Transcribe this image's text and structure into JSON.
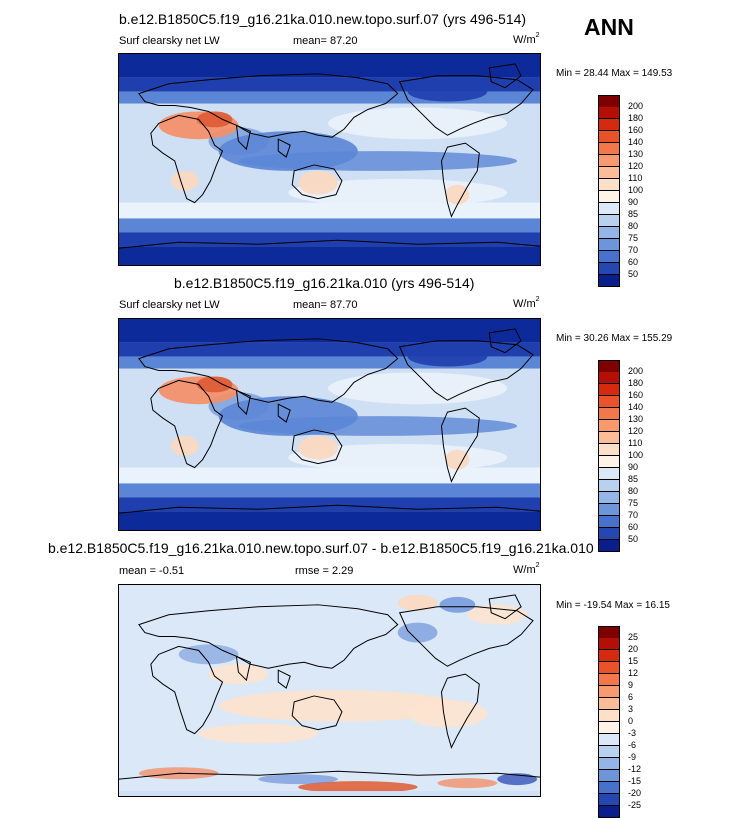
{
  "season": "ANN",
  "panels": [
    {
      "title": "b.e12.B1850C5.f19_g16.21ka.010.new.topo.surf.07 (yrs 496-514)",
      "variable": "Surf clearsky net LW",
      "mean_text": "mean=  87.20",
      "units_base": "W/m",
      "units_sup": "2",
      "minmax": "Min =  28.44 Max = 149.53",
      "colorbar": {
        "labels": [
          "200",
          "180",
          "160",
          "140",
          "130",
          "120",
          "110",
          "100",
          "90",
          "85",
          "80",
          "75",
          "70",
          "60",
          "50"
        ],
        "colors": [
          "#7f0000",
          "#b30f06",
          "#d42a10",
          "#e8532a",
          "#f2774a",
          "#f89a70",
          "#fbbd98",
          "#fde0c8",
          "#fff2e6",
          "#dbe8f7",
          "#b8d1ef",
          "#93b6e6",
          "#6d96da",
          "#4672cb",
          "#2448b0",
          "#0b1f8a"
        ]
      },
      "field": "control"
    },
    {
      "title": "b.e12.B1850C5.f19_g16.21ka.010 (yrs 496-514)",
      "variable": "Surf clearsky net LW",
      "mean_text": "mean=  87.70",
      "units_base": "W/m",
      "units_sup": "2",
      "minmax": "Min =  30.26 Max = 155.29",
      "colorbar": {
        "labels": [
          "200",
          "180",
          "160",
          "140",
          "130",
          "120",
          "110",
          "100",
          "90",
          "85",
          "80",
          "75",
          "70",
          "60",
          "50"
        ],
        "colors": [
          "#7f0000",
          "#b30f06",
          "#d42a10",
          "#e8532a",
          "#f2774a",
          "#f89a70",
          "#fbbd98",
          "#fde0c8",
          "#fff2e6",
          "#dbe8f7",
          "#b8d1ef",
          "#93b6e6",
          "#6d96da",
          "#4672cb",
          "#2448b0",
          "#0b1f8a"
        ]
      },
      "field": "control"
    },
    {
      "title": "b.e12.B1850C5.f19_g16.21ka.010.new.topo.surf.07 - b.e12.B1850C5.f19_g16.21ka.010",
      "variable": "mean =  -0.51",
      "mean_text": "rmse =   2.29",
      "units_base": "W/m",
      "units_sup": "2",
      "minmax": "Min = -19.54 Max =  16.15",
      "colorbar": {
        "labels": [
          "25",
          "20",
          "15",
          "12",
          "9",
          "6",
          "3",
          "0",
          "-3",
          "-6",
          "-9",
          "-12",
          "-15",
          "-20",
          "-25"
        ],
        "colors": [
          "#7f0000",
          "#b30f06",
          "#d42a10",
          "#e8532a",
          "#f2774a",
          "#f89a70",
          "#fbbd98",
          "#fde0c8",
          "#fff2e6",
          "#dbe8f7",
          "#b8d1ef",
          "#93b6e6",
          "#6d96da",
          "#4672cb",
          "#2448b0",
          "#0b1f8a"
        ]
      },
      "field": "diff"
    }
  ],
  "colors": {
    "ocean_deep": "#1f3fae",
    "polar": "#0d2a9a",
    "mid_blue": "#5b86d6",
    "light_blue": "#cfe0f5",
    "near_white": "#eaf2fb",
    "warm_light": "#fbd8bf",
    "warm_mid": "#f2906a",
    "warm_strong": "#de5a33",
    "diff_bg": "#dbe8f7",
    "diff_warm": "#fde3cf"
  }
}
